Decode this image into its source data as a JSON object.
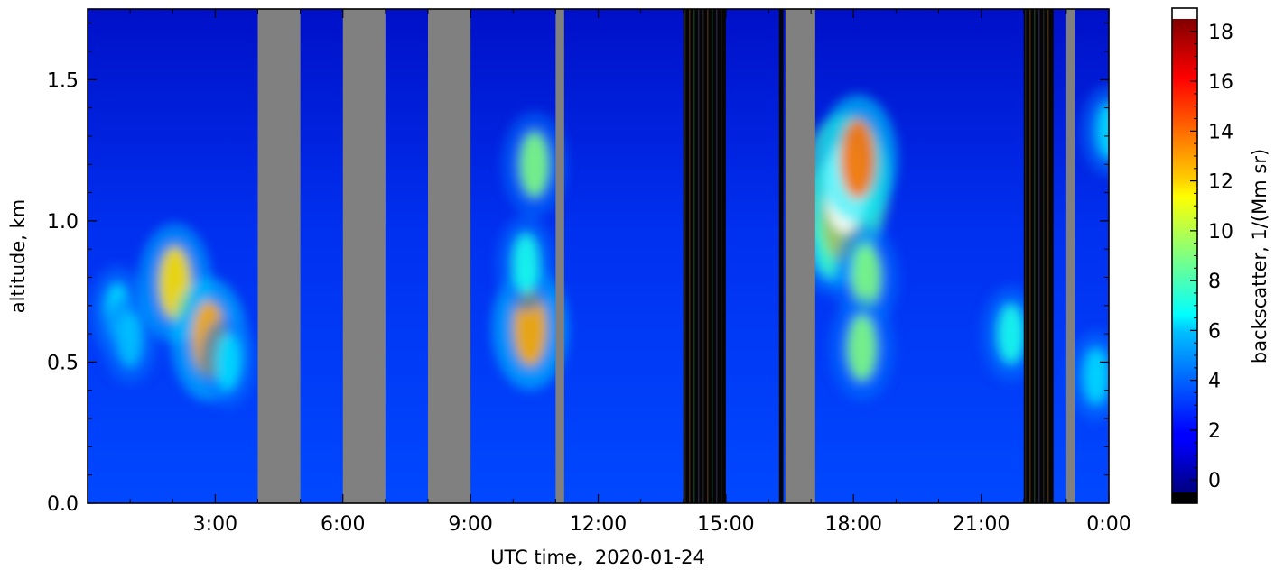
{
  "chart_data": {
    "type": "heatmap",
    "title": "",
    "xlabel": "UTC time,  2020-01-24",
    "ylabel": "altitude, km",
    "x_unit": "hours UTC",
    "xlim": [
      0,
      24
    ],
    "ylim": [
      0,
      1.75
    ],
    "x_ticks": [
      {
        "value": 3,
        "label": "3:00"
      },
      {
        "value": 6,
        "label": "6:00"
      },
      {
        "value": 9,
        "label": "9:00"
      },
      {
        "value": 12,
        "label": "12:00"
      },
      {
        "value": 15,
        "label": "15:00"
      },
      {
        "value": 18,
        "label": "18:00"
      },
      {
        "value": 21,
        "label": "21:00"
      },
      {
        "value": 24,
        "label": "0:00"
      }
    ],
    "y_ticks": [
      {
        "value": 0.0,
        "label": "0.0"
      },
      {
        "value": 0.5,
        "label": "0.5"
      },
      {
        "value": 1.0,
        "label": "1.0"
      },
      {
        "value": 1.5,
        "label": "1.5"
      }
    ],
    "background_value": 2,
    "missing_data_color": "#808080",
    "missing_data_intervals": [
      [
        4.0,
        5.0
      ],
      [
        6.0,
        7.0
      ],
      [
        8.0,
        9.0
      ],
      [
        11.0,
        11.2
      ],
      [
        16.4,
        17.1
      ],
      [
        23.0,
        23.2
      ]
    ],
    "noisy_data_intervals": [
      [
        14.0,
        15.0
      ],
      [
        16.25,
        16.35
      ],
      [
        22.0,
        22.7
      ]
    ],
    "features": [
      {
        "x": 0.7,
        "y": 0.68,
        "value": 6
      },
      {
        "x": 1.0,
        "y": 0.58,
        "value": 5.5
      },
      {
        "x": 2.05,
        "y": 0.78,
        "value": 12
      },
      {
        "x": 2.85,
        "y": 0.58,
        "value": 13
      },
      {
        "x": 3.3,
        "y": 0.5,
        "value": 6
      },
      {
        "x": 10.4,
        "y": 0.62,
        "value": 13
      },
      {
        "x": 10.5,
        "y": 1.2,
        "value": 9
      },
      {
        "x": 10.3,
        "y": 0.85,
        "value": 7
      },
      {
        "x": 17.45,
        "y": 0.92,
        "value": 9
      },
      {
        "x": 17.7,
        "y": 1.0,
        "value": 14
      },
      {
        "x": 17.8,
        "y": 1.12,
        "value": 18
      },
      {
        "x": 18.1,
        "y": 1.22,
        "value": 14
      },
      {
        "x": 18.3,
        "y": 0.8,
        "value": 9
      },
      {
        "x": 18.2,
        "y": 0.55,
        "value": 9
      },
      {
        "x": 21.7,
        "y": 0.6,
        "value": 7
      },
      {
        "x": 23.7,
        "y": 0.45,
        "value": 6
      },
      {
        "x": 24.0,
        "y": 1.32,
        "value": 6
      }
    ],
    "colorbar": {
      "label": "backscatter, 1/(Mm sr)",
      "range": [
        -0.5,
        18.5
      ],
      "ticks": [
        0,
        2,
        4,
        6,
        8,
        10,
        12,
        14,
        16,
        18
      ],
      "colormap": "jet",
      "over_color": "#ffffff",
      "under_color": "#000000"
    },
    "grid": false
  }
}
